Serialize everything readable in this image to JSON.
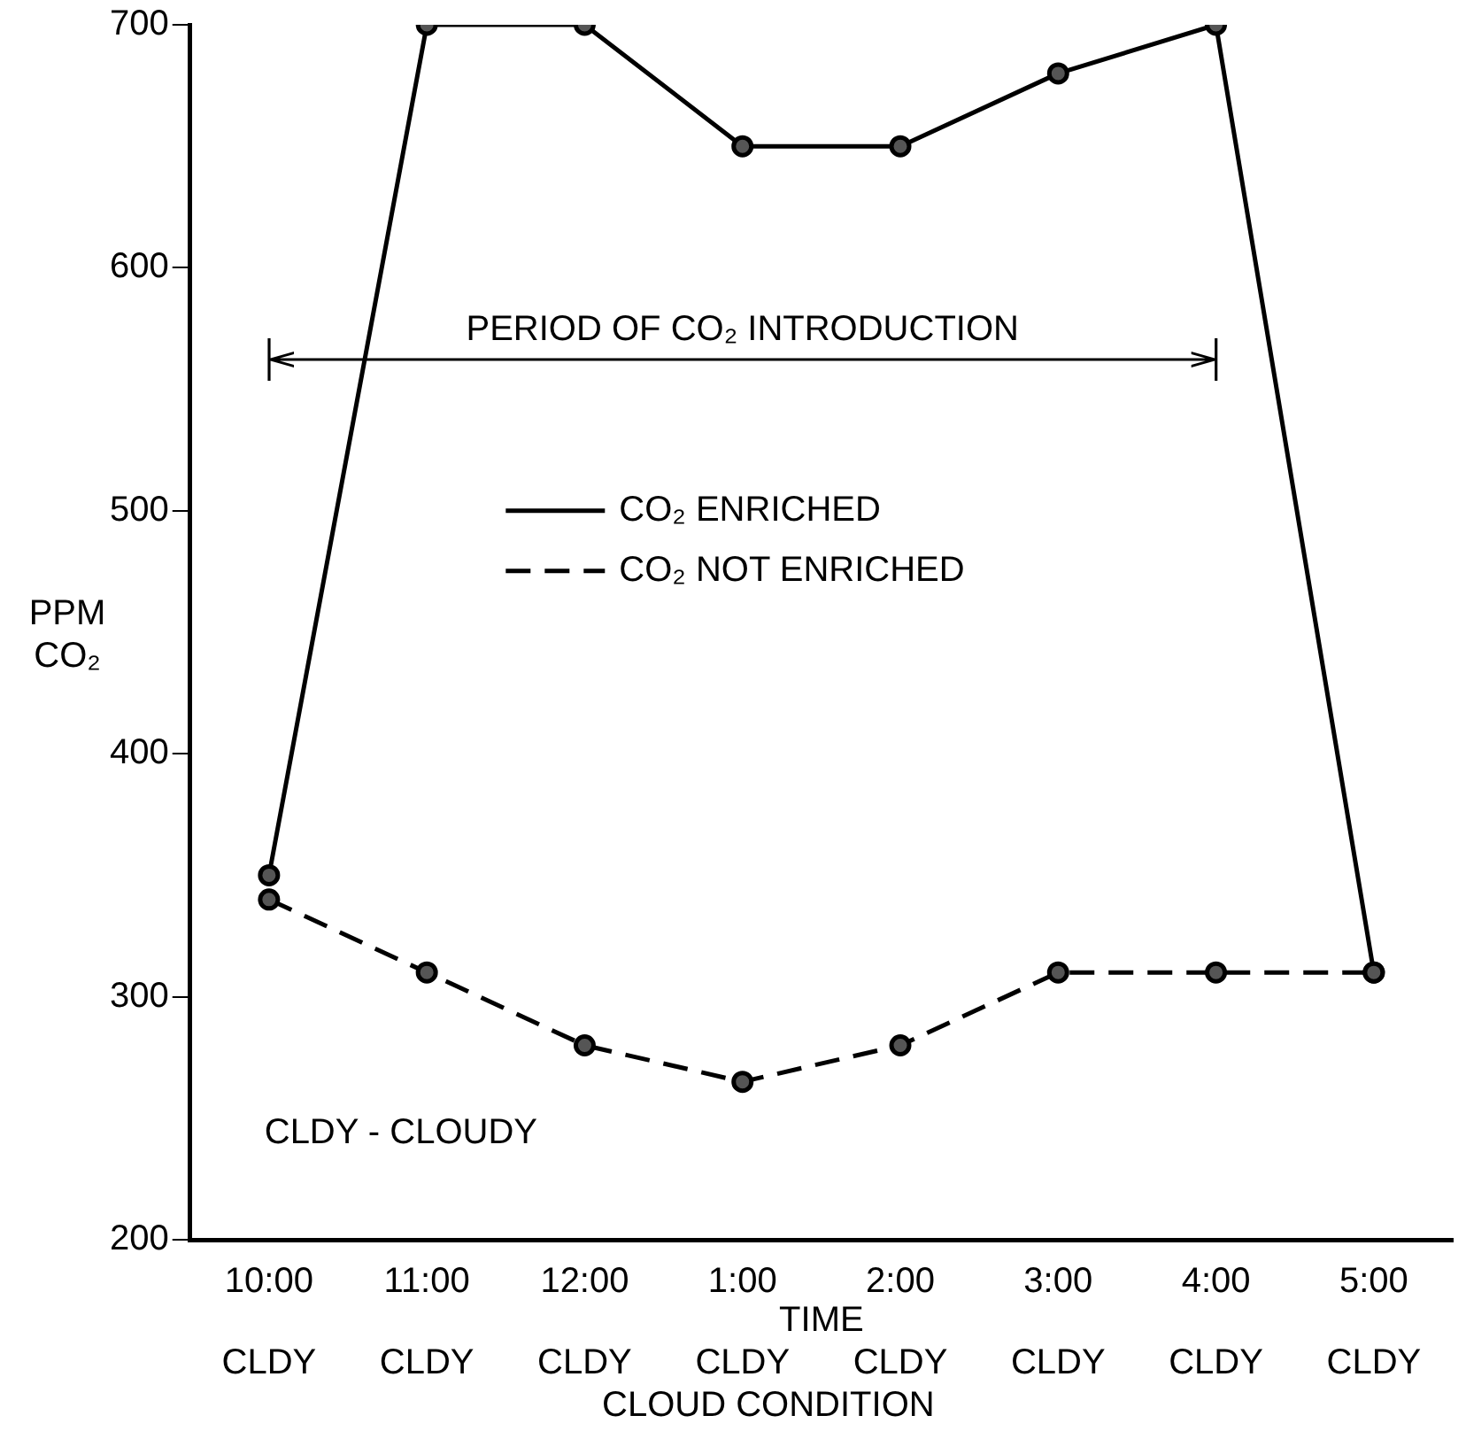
{
  "chart_data": {
    "type": "line",
    "xlabel": "TIME",
    "ylabel": "PPM CO₂",
    "categories": [
      "10:00",
      "11:00",
      "12:00",
      "1:00",
      "2:00",
      "3:00",
      "4:00",
      "5:00"
    ],
    "series": [
      {
        "name": "CO₂ ENRICHED",
        "color": "#000000",
        "line_style": "solid",
        "values": [
          350,
          700,
          700,
          650,
          650,
          680,
          700,
          310
        ]
      },
      {
        "name": "CO₂ NOT ENRICHED",
        "color": "#000000",
        "line_style": "dashed",
        "values": [
          340,
          310,
          280,
          265,
          280,
          310,
          310,
          310
        ]
      }
    ],
    "ylim": [
      200,
      700
    ],
    "yticks": [
      200,
      300,
      400,
      500,
      600,
      700
    ],
    "grid": false,
    "legend": "center",
    "marker": "circle",
    "annotations": [
      "CLDY - CLOUDY",
      "CLOUD CONDITION",
      "PERIOD OF CO₂ INTRODUCTION",
      "CLDY",
      "CLDY",
      "CLDY",
      "CLDY",
      "CLDY",
      "CLDY",
      "CLDY",
      "CLDY"
    ]
  }
}
